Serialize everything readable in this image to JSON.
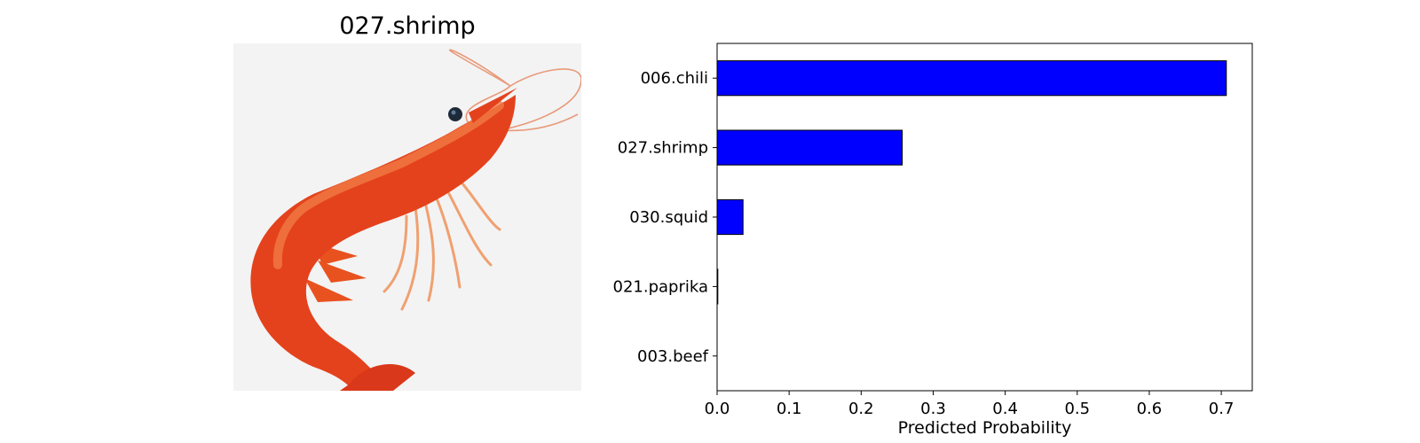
{
  "image_panel": {
    "title": "027.shrimp",
    "subject_icon": "shrimp-illustration"
  },
  "chart_data": {
    "type": "bar",
    "orientation": "horizontal",
    "categories": [
      "006.chili",
      "027.shrimp",
      "030.squid",
      "021.paprika",
      "003.beef"
    ],
    "values": [
      0.707,
      0.257,
      0.036,
      0.001,
      0.0
    ],
    "xlabel": "Predicted Probability",
    "ylabel": "",
    "xlim": [
      0,
      0.743
    ],
    "xticks": [
      0.0,
      0.1,
      0.2,
      0.3,
      0.4,
      0.5,
      0.6,
      0.7
    ],
    "grid": false,
    "bar_color": "#0000ff",
    "edge_color": "#000000"
  }
}
